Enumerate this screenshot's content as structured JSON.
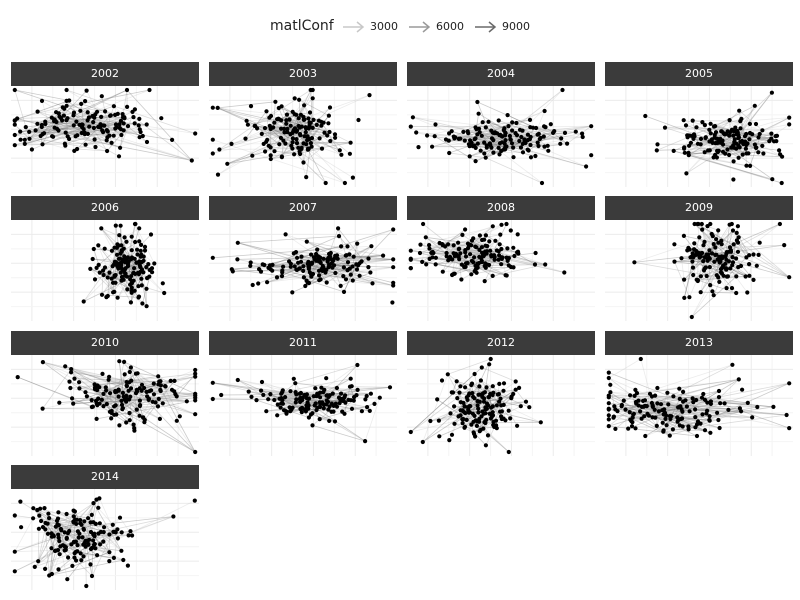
{
  "legend": {
    "title": "matlConf",
    "keys": [
      {
        "label": "3000",
        "color": "#c8c8c8"
      },
      {
        "label": "6000",
        "color": "#9a9a9a"
      },
      {
        "label": "9000",
        "color": "#6a6a6a"
      }
    ]
  },
  "chart_data": {
    "type": "scatter",
    "subtype": "network graph, faceted small multiples",
    "edge_aesthetic": "matlConf",
    "edge_scale_breaks": [
      3000,
      6000,
      9000
    ],
    "node_color": "#000000",
    "strip_color": "#3b3b3b",
    "grid": true,
    "legend_position": "top",
    "panels": [
      {
        "label": "2002",
        "spread": [
          0.2,
          0.13
        ],
        "center": [
          0.42,
          0.4
        ]
      },
      {
        "label": "2003",
        "spread": [
          0.12,
          0.12
        ],
        "center": [
          0.48,
          0.45
        ]
      },
      {
        "label": "2004",
        "spread": [
          0.18,
          0.1
        ],
        "center": [
          0.5,
          0.52
        ]
      },
      {
        "label": "2005",
        "spread": [
          0.13,
          0.1
        ],
        "center": [
          0.65,
          0.55
        ]
      },
      {
        "label": "2006",
        "spread": [
          0.08,
          0.16
        ],
        "center": [
          0.62,
          0.48
        ]
      },
      {
        "label": "2007",
        "spread": [
          0.15,
          0.1
        ],
        "center": [
          0.58,
          0.45
        ]
      },
      {
        "label": "2008",
        "spread": [
          0.16,
          0.11
        ],
        "center": [
          0.36,
          0.35
        ]
      },
      {
        "label": "2009",
        "spread": [
          0.1,
          0.15
        ],
        "center": [
          0.57,
          0.4
        ]
      },
      {
        "label": "2010",
        "spread": [
          0.18,
          0.13
        ],
        "center": [
          0.62,
          0.42
        ]
      },
      {
        "label": "2011",
        "spread": [
          0.15,
          0.09
        ],
        "center": [
          0.58,
          0.45
        ]
      },
      {
        "label": "2012",
        "spread": [
          0.09,
          0.16
        ],
        "center": [
          0.4,
          0.52
        ]
      },
      {
        "label": "2013",
        "spread": [
          0.19,
          0.12
        ],
        "center": [
          0.32,
          0.55
        ]
      },
      {
        "label": "2014",
        "spread": [
          0.13,
          0.15
        ],
        "center": [
          0.38,
          0.48
        ]
      }
    ]
  }
}
